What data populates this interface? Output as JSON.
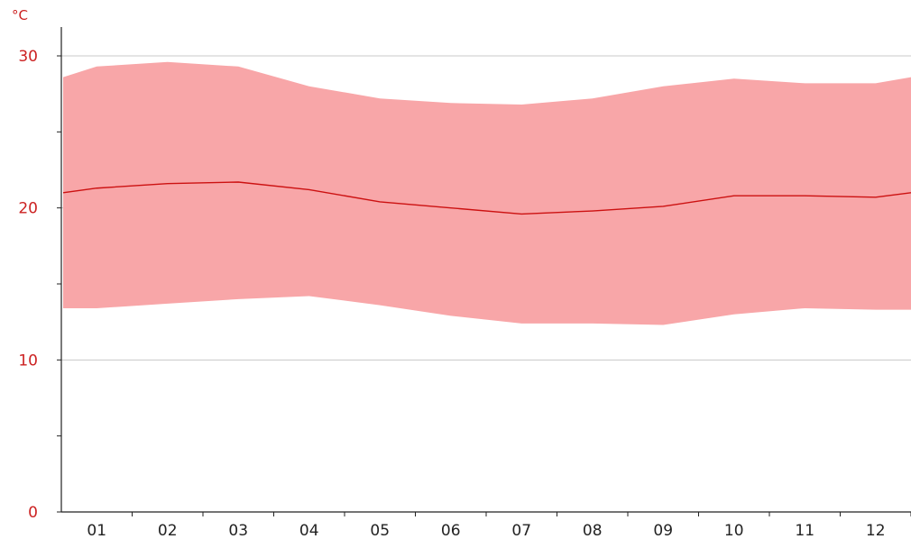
{
  "chart_data": {
    "type": "area",
    "y_unit": "°C",
    "categories": [
      "01",
      "02",
      "03",
      "04",
      "05",
      "06",
      "07",
      "08",
      "09",
      "10",
      "11",
      "12"
    ],
    "y_ticks": [
      "0",
      "10",
      "20",
      "30"
    ],
    "ylim": [
      0,
      30
    ],
    "grid": true,
    "series": [
      {
        "kind": "range",
        "upper": [
          29.3,
          29.6,
          29.3,
          28.0,
          27.2,
          26.9,
          26.8,
          27.2,
          28.0,
          28.5,
          28.2,
          28.2
        ],
        "lower": [
          13.4,
          13.7,
          14.0,
          14.2,
          13.6,
          12.9,
          12.4,
          12.4,
          12.3,
          13.0,
          13.4,
          13.3
        ],
        "color": "#f8a6a8"
      },
      {
        "kind": "line",
        "values": [
          21.3,
          21.6,
          21.7,
          21.2,
          20.4,
          20.0,
          19.6,
          19.8,
          20.1,
          20.8,
          20.8,
          20.7
        ],
        "color": "#cc1111"
      }
    ]
  }
}
